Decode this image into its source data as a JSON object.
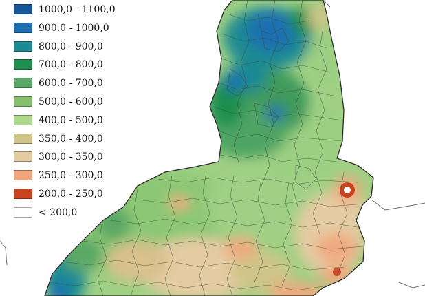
{
  "legend": {
    "items": [
      {
        "label": "1000,0 - 1100,0",
        "color": "#16569a"
      },
      {
        "label": "900,0 - 1000,0",
        "color": "#1d6fb1"
      },
      {
        "label": "800,0 - 900,0",
        "color": "#1b8a93"
      },
      {
        "label": "700,0 - 800,0",
        "color": "#1e8f4f"
      },
      {
        "label": "600,0 - 700,0",
        "color": "#5aa865"
      },
      {
        "label": "500,0 - 600,0",
        "color": "#86c06e"
      },
      {
        "label": "400,0 - 500,0",
        "color": "#add88e"
      },
      {
        "label": "350,0 - 400,0",
        "color": "#cfc588"
      },
      {
        "label": "300,0 - 350,0",
        "color": "#e5cba2"
      },
      {
        "label": "250,0 - 300,0",
        "color": "#f1a77e"
      },
      {
        "label": "200,0 - 250,0",
        "color": "#c8441f"
      },
      {
        "label": "< 200,0",
        "color": "#ffffff"
      }
    ]
  }
}
